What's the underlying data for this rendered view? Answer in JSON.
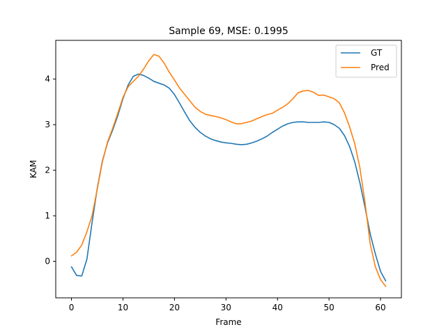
{
  "chart_data": {
    "type": "line",
    "title": "Sample 69, MSE: 0.1995",
    "xlabel": "Frame",
    "ylabel": "KAM",
    "xlim": [
      -3.05,
      64.05
    ],
    "ylim": [
      -0.8,
      4.85
    ],
    "xticks": [
      0,
      10,
      20,
      30,
      40,
      50,
      60
    ],
    "yticks": [
      0,
      1,
      2,
      3,
      4
    ],
    "grid": false,
    "legend_position": "top-right",
    "x": [
      0,
      1,
      2,
      3,
      4,
      5,
      6,
      7,
      8,
      9,
      10,
      11,
      12,
      13,
      14,
      15,
      16,
      17,
      18,
      19,
      20,
      21,
      22,
      23,
      24,
      25,
      26,
      27,
      28,
      29,
      30,
      31,
      32,
      33,
      34,
      35,
      36,
      37,
      38,
      39,
      40,
      41,
      42,
      43,
      44,
      45,
      46,
      47,
      48,
      49,
      50,
      51,
      52,
      53,
      54,
      55,
      56,
      57,
      58,
      59,
      60,
      61
    ],
    "series": [
      {
        "name": "GT",
        "color": "#1f77b4",
        "values": [
          -0.12,
          -0.31,
          -0.32,
          0.05,
          0.85,
          1.6,
          2.2,
          2.6,
          2.88,
          3.2,
          3.57,
          3.87,
          4.06,
          4.11,
          4.08,
          4.02,
          3.95,
          3.91,
          3.87,
          3.8,
          3.66,
          3.47,
          3.27,
          3.08,
          2.94,
          2.83,
          2.75,
          2.69,
          2.65,
          2.62,
          2.6,
          2.59,
          2.57,
          2.56,
          2.57,
          2.6,
          2.64,
          2.69,
          2.75,
          2.83,
          2.9,
          2.97,
          3.02,
          3.05,
          3.06,
          3.06,
          3.05,
          3.05,
          3.05,
          3.06,
          3.05,
          3.0,
          2.92,
          2.76,
          2.52,
          2.18,
          1.72,
          1.18,
          0.6,
          0.16,
          -0.22,
          -0.43
        ]
      },
      {
        "name": "Pred",
        "color": "#ff7f0e",
        "values": [
          0.12,
          0.2,
          0.36,
          0.65,
          1.0,
          1.58,
          2.18,
          2.62,
          2.92,
          3.25,
          3.6,
          3.83,
          3.95,
          4.06,
          4.22,
          4.4,
          4.54,
          4.5,
          4.35,
          4.15,
          3.98,
          3.8,
          3.66,
          3.52,
          3.38,
          3.29,
          3.23,
          3.2,
          3.18,
          3.15,
          3.11,
          3.06,
          3.02,
          3.02,
          3.05,
          3.08,
          3.13,
          3.18,
          3.22,
          3.25,
          3.32,
          3.38,
          3.46,
          3.57,
          3.7,
          3.74,
          3.75,
          3.71,
          3.64,
          3.65,
          3.61,
          3.57,
          3.48,
          3.26,
          2.95,
          2.58,
          2.05,
          1.28,
          0.38,
          -0.12,
          -0.4,
          -0.55
        ]
      }
    ]
  }
}
